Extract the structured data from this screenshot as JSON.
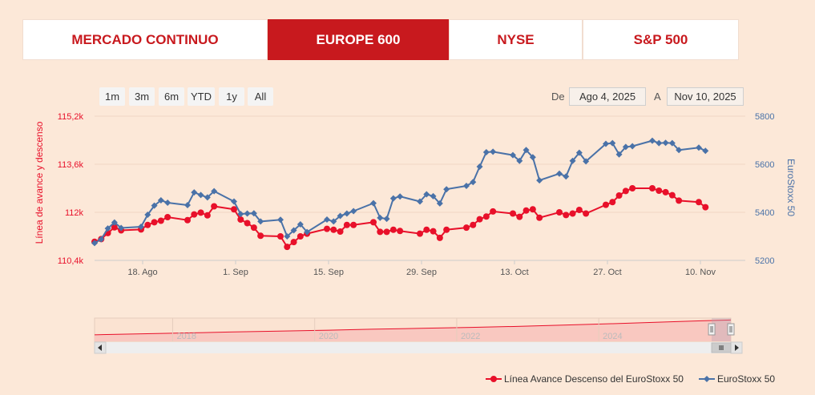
{
  "tabs": [
    {
      "label": "MERCADO CONTINUO",
      "active": false
    },
    {
      "label": "EUROPE 600",
      "active": true
    },
    {
      "label": "NYSE",
      "active": false
    },
    {
      "label": "S&P 500",
      "active": false
    }
  ],
  "range_buttons": [
    "1m",
    "3m",
    "6m",
    "YTD",
    "1y",
    "All"
  ],
  "date_range": {
    "from_label": "De",
    "from": "Ago 4, 2025",
    "to_label": "A",
    "to": "Nov 10, 2025"
  },
  "colors": {
    "red": "#e8102a",
    "blue": "#4a72a8",
    "accent": "#c8191e"
  },
  "chart_data": {
    "type": "line",
    "title": "",
    "x_ticks": [
      "18. Ago",
      "1. Sep",
      "15. Sep",
      "29. Sep",
      "13. Oct",
      "27. Oct",
      "10. Nov"
    ],
    "x_range": [
      "2025-08-04",
      "2025-11-10"
    ],
    "y_left": {
      "label": "Línea de avance y descenso",
      "ticks": [
        "115,2k",
        "113,6k",
        "112k",
        "110,4k"
      ],
      "range": [
        110400,
        115200
      ]
    },
    "y_right": {
      "label": "EuroStoxx 50",
      "ticks": [
        "5800",
        "5600",
        "5400",
        "5200"
      ],
      "range": [
        5200,
        5800
      ]
    },
    "grid": true,
    "legend_position": "bottom-right",
    "series": [
      {
        "name": "Línea Avance Descenso del EuroStoxx 50",
        "axis": "left",
        "color": "#e8102a",
        "marker": "circle",
        "points": [
          [
            "2025-08-04",
            111020
          ],
          [
            "2025-08-05",
            111110
          ],
          [
            "2025-08-06",
            111310
          ],
          [
            "2025-08-07",
            111500
          ],
          [
            "2025-08-08",
            111400
          ],
          [
            "2025-08-11",
            111430
          ],
          [
            "2025-08-12",
            111580
          ],
          [
            "2025-08-13",
            111670
          ],
          [
            "2025-08-14",
            111720
          ],
          [
            "2025-08-15",
            111840
          ],
          [
            "2025-08-18",
            111740
          ],
          [
            "2025-08-19",
            111930
          ],
          [
            "2025-08-20",
            111990
          ],
          [
            "2025-08-21",
            111900
          ],
          [
            "2025-08-22",
            112200
          ],
          [
            "2025-08-25",
            112100
          ],
          [
            "2025-08-26",
            111760
          ],
          [
            "2025-08-27",
            111640
          ],
          [
            "2025-08-28",
            111490
          ],
          [
            "2025-08-29",
            111220
          ],
          [
            "2025-09-01",
            111200
          ],
          [
            "2025-09-02",
            110850
          ],
          [
            "2025-09-03",
            111010
          ],
          [
            "2025-09-04",
            111200
          ],
          [
            "2025-09-05",
            111290
          ],
          [
            "2025-09-08",
            111450
          ],
          [
            "2025-09-09",
            111420
          ],
          [
            "2025-09-10",
            111360
          ],
          [
            "2025-09-11",
            111580
          ],
          [
            "2025-09-12",
            111580
          ],
          [
            "2025-09-15",
            111670
          ],
          [
            "2025-09-16",
            111350
          ],
          [
            "2025-09-17",
            111350
          ],
          [
            "2025-09-18",
            111420
          ],
          [
            "2025-09-19",
            111380
          ],
          [
            "2025-09-22",
            111290
          ],
          [
            "2025-09-23",
            111420
          ],
          [
            "2025-09-24",
            111370
          ],
          [
            "2025-09-25",
            111150
          ],
          [
            "2025-09-26",
            111420
          ],
          [
            "2025-09-29",
            111490
          ],
          [
            "2025-09-30",
            111580
          ],
          [
            "2025-10-01",
            111770
          ],
          [
            "2025-10-02",
            111860
          ],
          [
            "2025-10-03",
            112030
          ],
          [
            "2025-10-06",
            111960
          ],
          [
            "2025-10-07",
            111850
          ],
          [
            "2025-10-08",
            112060
          ],
          [
            "2025-10-09",
            112100
          ],
          [
            "2025-10-10",
            111820
          ],
          [
            "2025-10-13",
            112000
          ],
          [
            "2025-10-14",
            111910
          ],
          [
            "2025-10-15",
            111960
          ],
          [
            "2025-10-16",
            112080
          ],
          [
            "2025-10-17",
            111960
          ],
          [
            "2025-10-20",
            112250
          ],
          [
            "2025-10-21",
            112340
          ],
          [
            "2025-10-22",
            112560
          ],
          [
            "2025-10-23",
            112710
          ],
          [
            "2025-10-24",
            112800
          ],
          [
            "2025-10-27",
            112800
          ],
          [
            "2025-10-28",
            112720
          ],
          [
            "2025-10-29",
            112670
          ],
          [
            "2025-10-30",
            112570
          ],
          [
            "2025-10-31",
            112390
          ],
          [
            "2025-11-03",
            112340
          ],
          [
            "2025-11-04",
            112170
          ]
        ]
      },
      {
        "name": "EuroStoxx 50",
        "axis": "right",
        "color": "#4a72a8",
        "marker": "diamond",
        "points": [
          [
            "2025-08-04",
            5272
          ],
          [
            "2025-08-05",
            5288
          ],
          [
            "2025-08-06",
            5333
          ],
          [
            "2025-08-07",
            5358
          ],
          [
            "2025-08-08",
            5335
          ],
          [
            "2025-08-11",
            5340
          ],
          [
            "2025-08-12",
            5390
          ],
          [
            "2025-08-13",
            5428
          ],
          [
            "2025-08-14",
            5450
          ],
          [
            "2025-08-15",
            5440
          ],
          [
            "2025-08-18",
            5430
          ],
          [
            "2025-08-19",
            5483
          ],
          [
            "2025-08-20",
            5472
          ],
          [
            "2025-08-21",
            5462
          ],
          [
            "2025-08-22",
            5488
          ],
          [
            "2025-08-25",
            5445
          ],
          [
            "2025-08-26",
            5393
          ],
          [
            "2025-08-27",
            5395
          ],
          [
            "2025-08-28",
            5396
          ],
          [
            "2025-08-29",
            5362
          ],
          [
            "2025-09-01",
            5369
          ],
          [
            "2025-09-02",
            5300
          ],
          [
            "2025-09-03",
            5325
          ],
          [
            "2025-09-04",
            5350
          ],
          [
            "2025-09-05",
            5318
          ],
          [
            "2025-09-08",
            5370
          ],
          [
            "2025-09-09",
            5362
          ],
          [
            "2025-09-10",
            5385
          ],
          [
            "2025-09-11",
            5395
          ],
          [
            "2025-09-12",
            5405
          ],
          [
            "2025-09-15",
            5438
          ],
          [
            "2025-09-16",
            5377
          ],
          [
            "2025-09-17",
            5373
          ],
          [
            "2025-09-18",
            5458
          ],
          [
            "2025-09-19",
            5466
          ],
          [
            "2025-09-22",
            5445
          ],
          [
            "2025-09-23",
            5475
          ],
          [
            "2025-09-24",
            5467
          ],
          [
            "2025-09-25",
            5437
          ],
          [
            "2025-09-26",
            5496
          ],
          [
            "2025-09-29",
            5510
          ],
          [
            "2025-09-30",
            5526
          ],
          [
            "2025-10-01",
            5590
          ],
          [
            "2025-10-02",
            5650
          ],
          [
            "2025-10-03",
            5652
          ],
          [
            "2025-10-06",
            5638
          ],
          [
            "2025-10-07",
            5614
          ],
          [
            "2025-10-08",
            5659
          ],
          [
            "2025-10-09",
            5629
          ],
          [
            "2025-10-10",
            5533
          ],
          [
            "2025-10-13",
            5561
          ],
          [
            "2025-10-14",
            5549
          ],
          [
            "2025-10-15",
            5614
          ],
          [
            "2025-10-16",
            5648
          ],
          [
            "2025-10-17",
            5612
          ],
          [
            "2025-10-20",
            5685
          ],
          [
            "2025-10-21",
            5688
          ],
          [
            "2025-10-22",
            5641
          ],
          [
            "2025-10-23",
            5672
          ],
          [
            "2025-10-24",
            5675
          ],
          [
            "2025-10-27",
            5698
          ],
          [
            "2025-10-28",
            5688
          ],
          [
            "2025-10-29",
            5689
          ],
          [
            "2025-10-30",
            5688
          ],
          [
            "2025-10-31",
            5659
          ],
          [
            "2025-11-03",
            5669
          ],
          [
            "2025-11-04",
            5656
          ]
        ]
      }
    ]
  },
  "navigator": {
    "year_labels": [
      "2018",
      "2020",
      "2022",
      "2024"
    ],
    "year_positions": [
      2018,
      2020,
      2022,
      2024
    ],
    "data_range": [
      2016.9,
      2025.86
    ],
    "selected_range": [
      2025.59,
      2025.86
    ],
    "series": [
      [
        2016.9,
        0.28
      ],
      [
        2017.5,
        0.32
      ],
      [
        2018.2,
        0.36
      ],
      [
        2018.8,
        0.4
      ],
      [
        2019.5,
        0.44
      ],
      [
        2020.2,
        0.48
      ],
      [
        2020.8,
        0.52
      ],
      [
        2021.5,
        0.56
      ],
      [
        2022.2,
        0.6
      ],
      [
        2022.8,
        0.64
      ],
      [
        2023.5,
        0.7
      ],
      [
        2024.2,
        0.76
      ],
      [
        2024.8,
        0.82
      ],
      [
        2025.4,
        0.88
      ],
      [
        2025.86,
        0.92
      ]
    ]
  }
}
